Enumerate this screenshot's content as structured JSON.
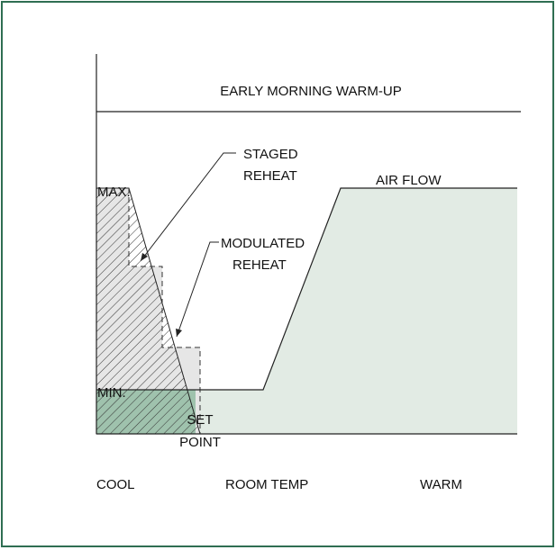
{
  "title": "EARLY MORNING WARM-UP",
  "axis": {
    "max": "MAX.",
    "min": "MIN.",
    "x_labels": [
      "COOL",
      "ROOM TEMP",
      "WARM"
    ]
  },
  "labels": {
    "staged_reheat": [
      "STAGED",
      "REHEAT"
    ],
    "modulated_reheat": [
      "MODULATED",
      "REHEAT"
    ],
    "air_flow": "AIR FLOW",
    "set_point": [
      "SET",
      "POINT"
    ]
  }
}
